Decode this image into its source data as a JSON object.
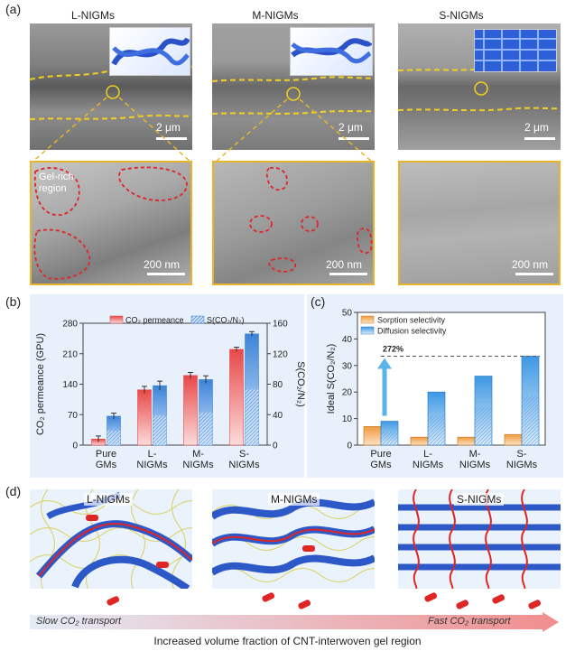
{
  "panel_labels": {
    "a": "(a)",
    "b": "(b)",
    "c": "(c)",
    "d": "(d)"
  },
  "panel_a": {
    "columns": [
      "L-NIGMs",
      "M-NIGMs",
      "S-NIGMs"
    ],
    "top_scale": "2 μm",
    "bottom_scale": "200 nm",
    "gel_label_line1": "Gel-rich",
    "gel_label_line2": "region"
  },
  "panel_b": {
    "legend_permeance": "CO₂ permeance",
    "legend_selectivity": "S(CO₂/N₂)",
    "chart_data": {
      "type": "bar",
      "categories": [
        "Pure GMs",
        "L-NIGMs",
        "M-NIGMs",
        "S-NIGMs"
      ],
      "category_lines": [
        [
          "Pure",
          "GMs"
        ],
        [
          "L-",
          "NIGMs"
        ],
        [
          "M-",
          "NIGMs"
        ],
        [
          "S-",
          "NIGMs"
        ]
      ],
      "series": [
        {
          "name": "CO₂ permeance",
          "axis": "left",
          "values": [
            14,
            127,
            160,
            220
          ],
          "errors": [
            7,
            8,
            7,
            5
          ],
          "color": "#e85a5a"
        },
        {
          "name": "S(CO₂/N₂)",
          "axis": "right",
          "values": [
            38,
            78,
            86,
            146
          ],
          "errors": [
            4,
            6,
            5,
            3
          ],
          "color": "#4a8fd8"
        }
      ],
      "ylabel_left": "CO₂ permeance (GPU)",
      "ylabel_right": "S(CO₂/N₂)",
      "ylim_left": [
        0,
        280
      ],
      "yticks_left": [
        "0",
        "70",
        "140",
        "210",
        "280"
      ],
      "ylim_right": [
        0,
        160
      ],
      "yticks_right": [
        "0",
        "40",
        "80",
        "120",
        "160"
      ]
    }
  },
  "panel_c": {
    "legend_sorption": "Sorption selectivity",
    "legend_diffusion": "Diffusion selectivity",
    "annotation": "272%",
    "chart_data": {
      "type": "bar",
      "categories": [
        "Pure GMs",
        "L-NIGMs",
        "M-NIGMs",
        "S-NIGMs"
      ],
      "category_lines": [
        [
          "Pure",
          "GMs"
        ],
        [
          "L-",
          "NIGMs"
        ],
        [
          "M-",
          "NIGMs"
        ],
        [
          "S-",
          "NIGMs"
        ]
      ],
      "series": [
        {
          "name": "Sorption selectivity",
          "values": [
            7,
            3,
            3,
            4
          ],
          "color": "#f0a050"
        },
        {
          "name": "Diffusion selectivity",
          "values": [
            9,
            20,
            26,
            33.5
          ],
          "color": "#4a9ee0"
        }
      ],
      "ylabel": "Ideal S(CO₂/N₂)",
      "ylim": [
        0,
        50
      ],
      "yticks": [
        "0",
        "10",
        "20",
        "30",
        "40",
        "50"
      ]
    }
  },
  "panel_d": {
    "labels": [
      "L-NIGMs",
      "M-NIGMs",
      "S-NIGMs"
    ],
    "slow_label": "Slow CO₂ transport",
    "fast_label": "Fast CO₂ transport",
    "caption": "Increased volume fraction of CNT-interwoven gel region"
  }
}
